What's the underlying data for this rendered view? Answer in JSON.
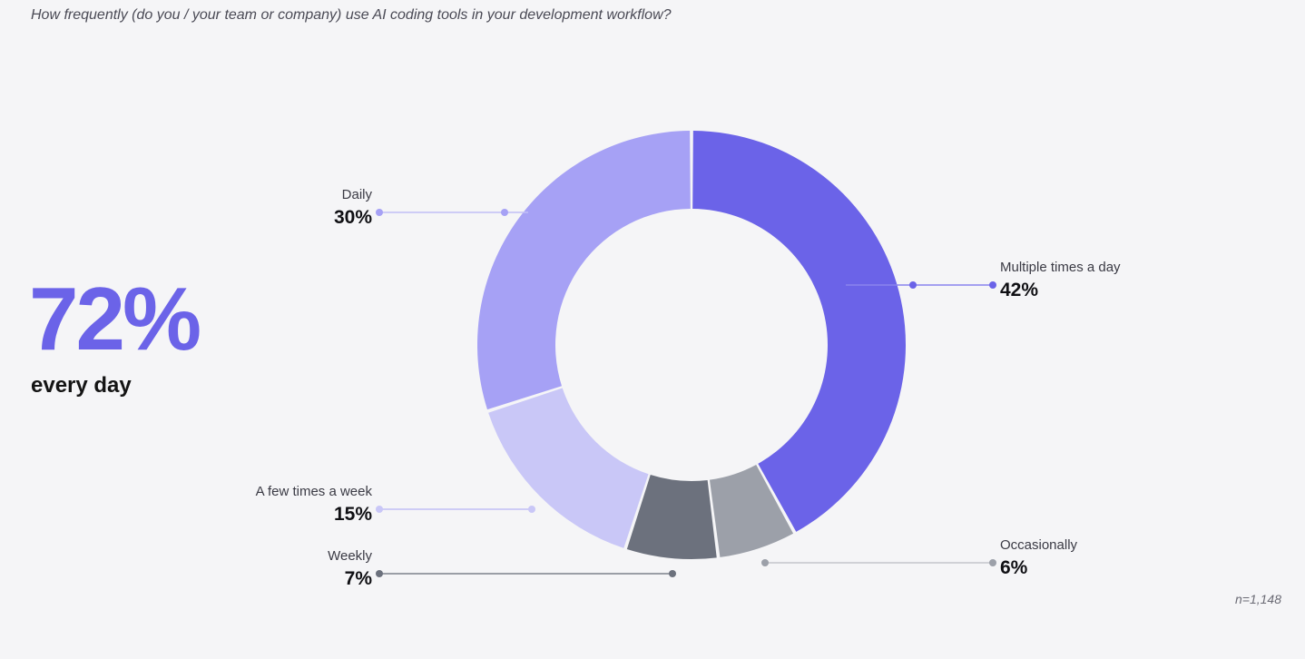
{
  "question": "How frequently (do you / your team or company) use AI coding tools in your development workflow?",
  "headline": {
    "value": "72%",
    "label": "every day"
  },
  "sample": "n=1,148",
  "chart_data": {
    "type": "pie",
    "subtype": "donut",
    "title": "How frequently (do you / your team or company) use AI coding tools in your development workflow?",
    "unit": "%",
    "slices": [
      {
        "name": "Multiple times a day",
        "value": 42,
        "label": "42%",
        "color": "#6b63e8"
      },
      {
        "name": "Occasionally",
        "value": 6,
        "label": "6%",
        "color": "#9ca0a9"
      },
      {
        "name": "Weekly",
        "value": 7,
        "label": "7%",
        "color": "#6c717d"
      },
      {
        "name": "A few times a week",
        "value": 15,
        "label": "15%",
        "color": "#c9c7f7"
      },
      {
        "name": "Daily",
        "value": 30,
        "label": "30%",
        "color": "#a6a1f5"
      }
    ]
  }
}
